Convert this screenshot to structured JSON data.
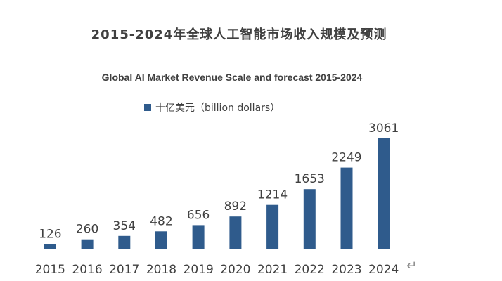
{
  "chart_data": {
    "type": "bar",
    "title": "2015-2024年全球人工智能市场收入规模及预测",
    "subtitle": "Global AI Market Revenue Scale and forecast 2015-2024",
    "categories": [
      "2015",
      "2016",
      "2017",
      "2018",
      "2019",
      "2020",
      "2021",
      "2022",
      "2023",
      "2024"
    ],
    "series": [
      {
        "name": "十亿美元（billion dollars）",
        "values": [
          126,
          260,
          354,
          482,
          656,
          892,
          1214,
          1653,
          2249,
          3061
        ]
      }
    ],
    "data_labels": true,
    "ylim": [
      0,
      3500
    ],
    "grid": false,
    "legend": "top-left",
    "colors": {
      "bar": "#2f5b8c",
      "text": "#404040",
      "axis": "#bfbfbf"
    }
  },
  "trailing_mark": "↵"
}
